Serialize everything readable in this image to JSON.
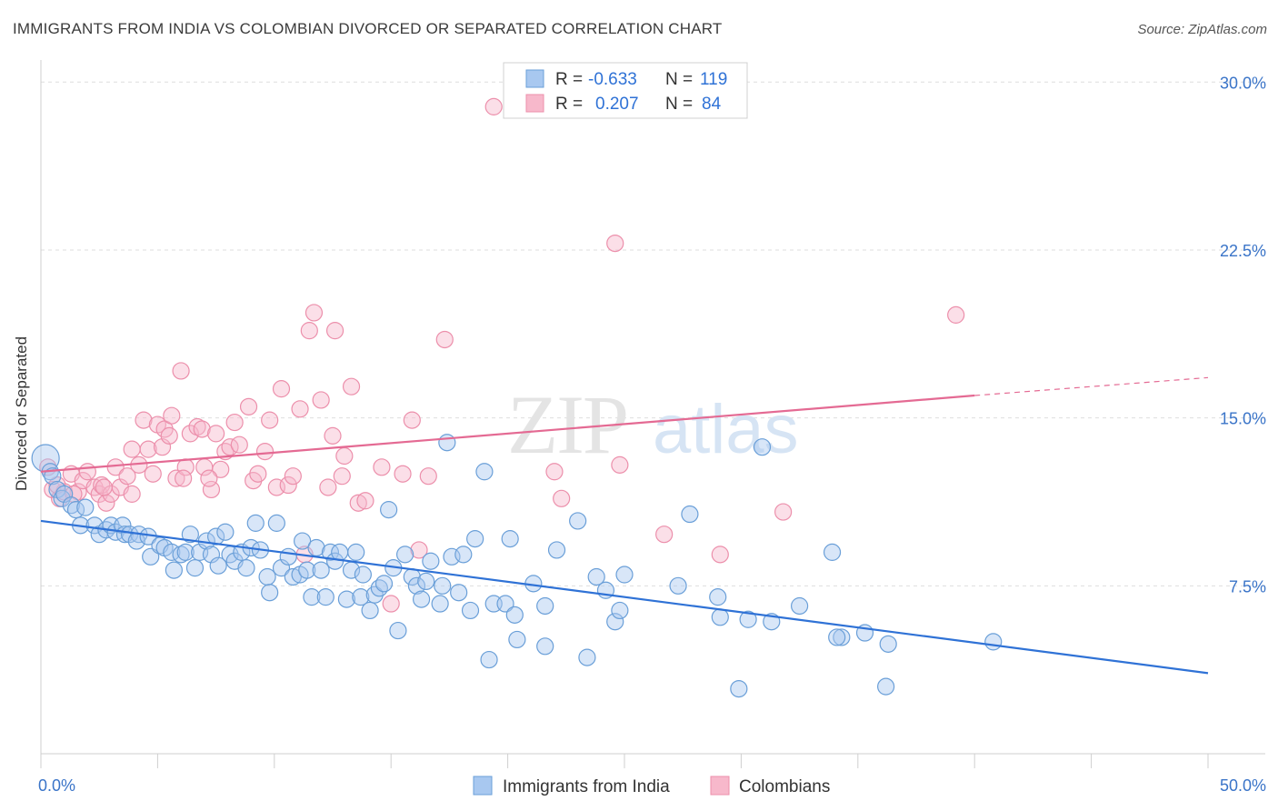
{
  "header": {
    "title": "IMMIGRANTS FROM INDIA VS COLOMBIAN DIVORCED OR SEPARATED CORRELATION CHART",
    "source": "Source: ZipAtlas.com"
  },
  "watermark": {
    "part1": "ZIP",
    "part2": "atlas"
  },
  "colors": {
    "india_fill": "#a8c8f0",
    "india_stroke": "#6a9fd8",
    "india_line": "#2f72d6",
    "colombia_fill": "#f7b8cb",
    "colombia_stroke": "#ec8fab",
    "colombia_line": "#e46a93",
    "tick_label": "#3a74c8"
  },
  "legend_top": {
    "r_label": "R =",
    "n_label": "N =",
    "rows": [
      {
        "r": "-0.633",
        "n": "119"
      },
      {
        "r": "0.207",
        "n": "84"
      }
    ]
  },
  "chart_data": {
    "type": "scatter",
    "xlabel": "",
    "ylabel": "Divorced or Separated",
    "xlim": [
      0,
      50
    ],
    "ylim": [
      0,
      30.5
    ],
    "x_tick_labels": [
      "0.0%",
      "50.0%"
    ],
    "y_ticks": [
      7.5,
      15.0,
      22.5,
      30.0
    ],
    "y_tick_labels": [
      "7.5%",
      "15.0%",
      "22.5%",
      "30.0%"
    ],
    "grid": "horizontal dashed",
    "legend_position": "bottom-center",
    "series": [
      {
        "name": "Immigrants from India",
        "trend": {
          "x": [
            0,
            50
          ],
          "y": [
            10.4,
            3.6
          ]
        },
        "points": [
          [
            0.2,
            13.2
          ],
          [
            0.4,
            12.6
          ],
          [
            0.5,
            12.4
          ],
          [
            0.7,
            11.8
          ],
          [
            0.9,
            11.4
          ],
          [
            1.0,
            11.6
          ],
          [
            1.3,
            11.1
          ],
          [
            1.5,
            10.9
          ],
          [
            1.9,
            11.0
          ],
          [
            1.7,
            10.2
          ],
          [
            2.3,
            10.2
          ],
          [
            2.5,
            9.8
          ],
          [
            2.8,
            10.0
          ],
          [
            3.0,
            10.2
          ],
          [
            3.2,
            9.9
          ],
          [
            3.5,
            10.2
          ],
          [
            3.6,
            9.8
          ],
          [
            3.8,
            9.8
          ],
          [
            4.2,
            9.8
          ],
          [
            4.1,
            9.5
          ],
          [
            4.6,
            9.7
          ],
          [
            4.7,
            8.8
          ],
          [
            5.1,
            9.3
          ],
          [
            5.3,
            9.2
          ],
          [
            5.6,
            9.0
          ],
          [
            5.7,
            8.2
          ],
          [
            6.0,
            8.9
          ],
          [
            6.2,
            9.0
          ],
          [
            6.4,
            9.8
          ],
          [
            6.6,
            8.3
          ],
          [
            6.8,
            9.0
          ],
          [
            7.1,
            9.5
          ],
          [
            7.3,
            8.9
          ],
          [
            7.5,
            9.7
          ],
          [
            7.6,
            8.4
          ],
          [
            7.9,
            9.9
          ],
          [
            8.1,
            8.9
          ],
          [
            8.3,
            8.6
          ],
          [
            8.6,
            9.0
          ],
          [
            8.8,
            8.3
          ],
          [
            9.0,
            9.2
          ],
          [
            9.2,
            10.3
          ],
          [
            9.4,
            9.1
          ],
          [
            9.7,
            7.9
          ],
          [
            9.8,
            7.2
          ],
          [
            10.1,
            10.3
          ],
          [
            10.3,
            8.3
          ],
          [
            10.6,
            8.8
          ],
          [
            10.8,
            7.9
          ],
          [
            11.1,
            8.0
          ],
          [
            11.2,
            9.5
          ],
          [
            11.4,
            8.2
          ],
          [
            11.6,
            7.0
          ],
          [
            11.8,
            9.2
          ],
          [
            12.0,
            8.2
          ],
          [
            12.2,
            7.0
          ],
          [
            12.4,
            9.0
          ],
          [
            12.6,
            8.6
          ],
          [
            12.8,
            9.0
          ],
          [
            13.1,
            6.9
          ],
          [
            13.3,
            8.2
          ],
          [
            13.5,
            9.0
          ],
          [
            13.7,
            7.0
          ],
          [
            13.8,
            8.0
          ],
          [
            14.1,
            6.4
          ],
          [
            14.3,
            7.1
          ],
          [
            14.5,
            7.4
          ],
          [
            14.7,
            7.6
          ],
          [
            14.9,
            10.9
          ],
          [
            15.1,
            8.3
          ],
          [
            15.3,
            5.5
          ],
          [
            15.6,
            8.9
          ],
          [
            15.9,
            7.9
          ],
          [
            16.1,
            7.5
          ],
          [
            16.3,
            6.9
          ],
          [
            16.5,
            7.7
          ],
          [
            16.7,
            8.6
          ],
          [
            17.1,
            6.7
          ],
          [
            17.2,
            7.5
          ],
          [
            17.6,
            8.8
          ],
          [
            17.4,
            13.9
          ],
          [
            17.9,
            7.2
          ],
          [
            18.1,
            8.9
          ],
          [
            18.4,
            6.4
          ],
          [
            18.6,
            9.6
          ],
          [
            19.0,
            12.6
          ],
          [
            19.2,
            4.2
          ],
          [
            19.4,
            6.7
          ],
          [
            19.9,
            6.7
          ],
          [
            20.1,
            9.6
          ],
          [
            20.4,
            5.1
          ],
          [
            20.3,
            6.2
          ],
          [
            21.1,
            7.6
          ],
          [
            21.6,
            4.8
          ],
          [
            21.6,
            6.6
          ],
          [
            22.1,
            9.1
          ],
          [
            23.0,
            10.4
          ],
          [
            23.4,
            4.3
          ],
          [
            23.8,
            7.9
          ],
          [
            24.2,
            7.3
          ],
          [
            24.6,
            5.9
          ],
          [
            24.8,
            6.4
          ],
          [
            25.0,
            8.0
          ],
          [
            27.3,
            7.5
          ],
          [
            27.8,
            10.7
          ],
          [
            29.0,
            7.0
          ],
          [
            29.1,
            6.1
          ],
          [
            29.9,
            2.9
          ],
          [
            30.3,
            6.0
          ],
          [
            30.9,
            13.7
          ],
          [
            31.3,
            5.9
          ],
          [
            32.5,
            6.6
          ],
          [
            33.9,
            9.0
          ],
          [
            34.3,
            5.2
          ],
          [
            35.3,
            5.4
          ],
          [
            36.2,
            3.0
          ],
          [
            36.3,
            4.9
          ],
          [
            40.8,
            5.0
          ],
          [
            34.1,
            5.2
          ]
        ]
      },
      {
        "name": "Colombians",
        "trend": {
          "x": [
            0,
            40
          ],
          "y": [
            12.6,
            16.0
          ],
          "dashed_to": [
            50,
            16.8
          ]
        },
        "points": [
          [
            0.3,
            12.8
          ],
          [
            0.5,
            11.8
          ],
          [
            0.8,
            11.4
          ],
          [
            1.0,
            11.7
          ],
          [
            1.3,
            12.5
          ],
          [
            1.6,
            11.7
          ],
          [
            1.8,
            12.2
          ],
          [
            2.0,
            12.6
          ],
          [
            2.3,
            11.9
          ],
          [
            2.5,
            11.6
          ],
          [
            2.6,
            12.0
          ],
          [
            2.8,
            11.2
          ],
          [
            3.0,
            11.6
          ],
          [
            3.2,
            12.8
          ],
          [
            3.4,
            11.9
          ],
          [
            3.7,
            12.4
          ],
          [
            3.9,
            11.6
          ],
          [
            4.2,
            12.9
          ],
          [
            4.4,
            14.9
          ],
          [
            4.6,
            13.6
          ],
          [
            4.8,
            12.5
          ],
          [
            5.0,
            14.7
          ],
          [
            5.2,
            13.7
          ],
          [
            5.3,
            14.5
          ],
          [
            5.6,
            15.1
          ],
          [
            5.8,
            12.3
          ],
          [
            6.0,
            17.1
          ],
          [
            6.2,
            12.8
          ],
          [
            6.4,
            14.3
          ],
          [
            6.7,
            14.6
          ],
          [
            6.9,
            14.5
          ],
          [
            7.0,
            12.8
          ],
          [
            7.3,
            11.8
          ],
          [
            7.5,
            14.3
          ],
          [
            7.7,
            12.7
          ],
          [
            7.9,
            13.5
          ],
          [
            8.1,
            13.7
          ],
          [
            8.3,
            14.8
          ],
          [
            8.5,
            13.8
          ],
          [
            8.9,
            15.5
          ],
          [
            9.1,
            12.2
          ],
          [
            9.3,
            12.5
          ],
          [
            9.6,
            13.5
          ],
          [
            9.8,
            14.9
          ],
          [
            10.1,
            11.9
          ],
          [
            10.3,
            16.3
          ],
          [
            10.6,
            12.0
          ],
          [
            10.8,
            12.4
          ],
          [
            11.1,
            15.4
          ],
          [
            11.3,
            8.9
          ],
          [
            11.5,
            18.9
          ],
          [
            11.7,
            19.7
          ],
          [
            12.0,
            15.8
          ],
          [
            12.3,
            11.9
          ],
          [
            12.5,
            14.2
          ],
          [
            12.6,
            18.9
          ],
          [
            12.9,
            12.4
          ],
          [
            13.0,
            13.3
          ],
          [
            13.3,
            16.4
          ],
          [
            13.6,
            11.2
          ],
          [
            13.9,
            11.3
          ],
          [
            14.6,
            12.8
          ],
          [
            15.0,
            6.7
          ],
          [
            15.5,
            12.5
          ],
          [
            15.9,
            14.9
          ],
          [
            16.2,
            9.1
          ],
          [
            16.6,
            12.4
          ],
          [
            17.3,
            18.5
          ],
          [
            19.4,
            28.9
          ],
          [
            22.0,
            12.6
          ],
          [
            22.3,
            11.4
          ],
          [
            24.6,
            22.8
          ],
          [
            24.8,
            12.9
          ],
          [
            26.7,
            9.8
          ],
          [
            29.1,
            8.9
          ],
          [
            31.8,
            10.8
          ],
          [
            39.2,
            19.6
          ],
          [
            6.1,
            12.3
          ],
          [
            7.2,
            12.3
          ],
          [
            2.7,
            11.9
          ],
          [
            1.4,
            11.6
          ],
          [
            3.9,
            13.6
          ],
          [
            5.5,
            14.2
          ],
          [
            0.7,
            12.0
          ]
        ]
      }
    ]
  },
  "legend_bottom": [
    {
      "label": "Immigrants from India"
    },
    {
      "label": "Colombians"
    }
  ]
}
